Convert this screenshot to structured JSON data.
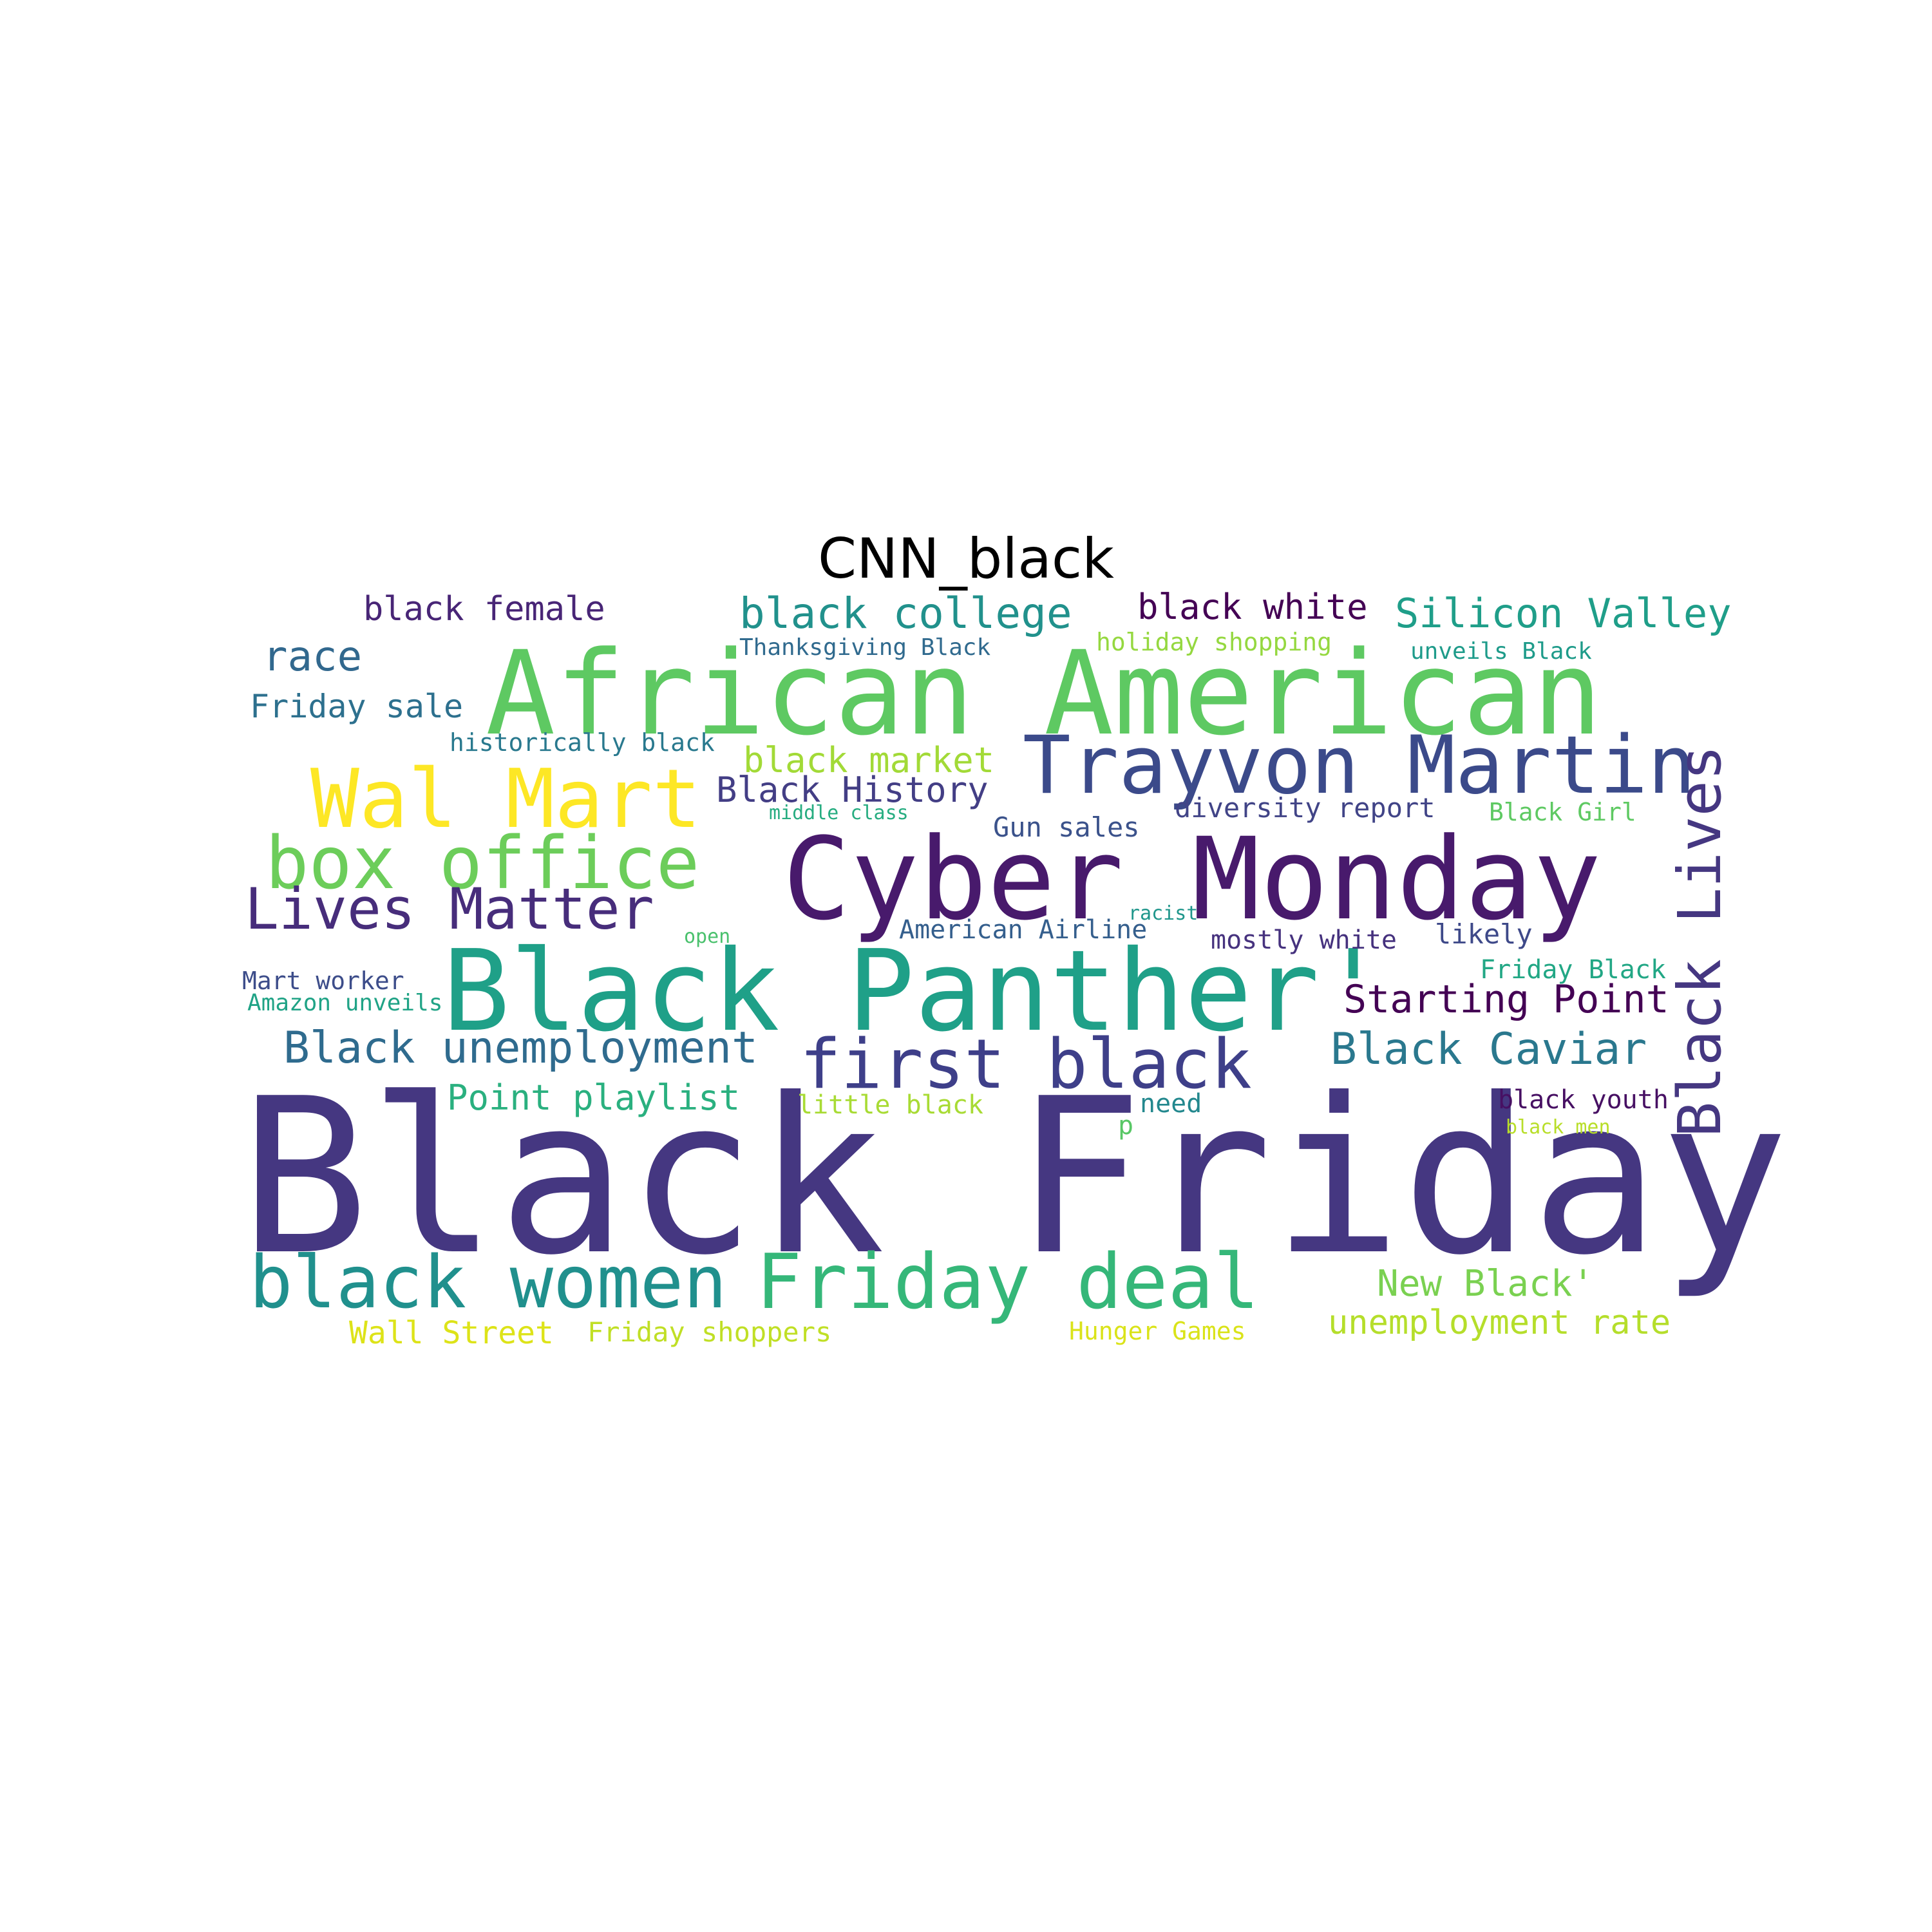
{
  "title": "CNN_black",
  "colors": {
    "dark_purple": "#440154",
    "purple": "#482878",
    "indigo": "#3e4989",
    "blue": "#31688e",
    "teal_blue": "#26828e",
    "teal": "#1f9e89",
    "green_teal": "#35b779",
    "green": "#6ece58",
    "lime": "#b5de2b",
    "yellow": "#fde725"
  },
  "words": [
    {
      "text": "Black Friday",
      "color": "#453781"
    },
    {
      "text": "African American",
      "color": "#5ec962"
    },
    {
      "text": "Cyber Monday",
      "color": "#481a6c"
    },
    {
      "text": "Black Panther'",
      "color": "#1fa088"
    },
    {
      "text": "Trayvon Martin",
      "color": "#3b4a8a"
    },
    {
      "text": "Wal Mart",
      "color": "#fde725"
    },
    {
      "text": "box office",
      "color": "#6ccd5a"
    },
    {
      "text": "Black Lives",
      "color": "#453781"
    },
    {
      "text": "first black",
      "color": "#3e3f89"
    },
    {
      "text": "black women",
      "color": "#20908d"
    },
    {
      "text": "Friday deal",
      "color": "#35b779"
    },
    {
      "text": "Lives Matter",
      "color": "#472d7b"
    },
    {
      "text": "Black unemployment",
      "color": "#2f6b8e"
    },
    {
      "text": "Black Caviar",
      "color": "#2a788e"
    },
    {
      "text": "Starting Point",
      "color": "#440154"
    },
    {
      "text": "black college",
      "color": "#21918c"
    },
    {
      "text": "Silicon Valley",
      "color": "#1f9e89"
    },
    {
      "text": "black female",
      "color": "#482576"
    },
    {
      "text": "black white",
      "color": "#440154"
    },
    {
      "text": "race",
      "color": "#31688e"
    },
    {
      "text": "Friday sale",
      "color": "#2d708e"
    },
    {
      "text": "black market",
      "color": "#a2da37"
    },
    {
      "text": "Black History",
      "color": "#433e85"
    },
    {
      "text": "Point playlist",
      "color": "#2ab07f"
    },
    {
      "text": "New Black'",
      "color": "#7ad151"
    },
    {
      "text": "unemployment rate",
      "color": "#b5de2b"
    },
    {
      "text": "Wall Street",
      "color": "#dde318"
    },
    {
      "text": "Friday shoppers",
      "color": "#c0df25"
    },
    {
      "text": "Hunger Games",
      "color": "#dae319"
    },
    {
      "text": "diversity report",
      "color": "#414487"
    },
    {
      "text": "Black Girl",
      "color": "#5ec962"
    },
    {
      "text": "Gun sales",
      "color": "#3b528b"
    },
    {
      "text": "American Airline",
      "color": "#355f8d"
    },
    {
      "text": "mostly white",
      "color": "#46327e"
    },
    {
      "text": "likely",
      "color": "#3e4989"
    },
    {
      "text": "Friday Black",
      "color": "#22a785"
    },
    {
      "text": "Mart worker",
      "color": "#3d4d8a"
    },
    {
      "text": "Amazon unveils",
      "color": "#20a386"
    },
    {
      "text": "historically black",
      "color": "#29798e"
    },
    {
      "text": "holiday shopping",
      "color": "#95d840"
    },
    {
      "text": "Thanksgiving Black",
      "color": "#306a8e"
    },
    {
      "text": "unveils Black",
      "color": "#1e9b8a"
    },
    {
      "text": "middle class",
      "color": "#27ad81"
    },
    {
      "text": "racist",
      "color": "#1f968b"
    },
    {
      "text": "open",
      "color": "#4ac16d"
    },
    {
      "text": "little black",
      "color": "#a8db34"
    },
    {
      "text": "need",
      "color": "#23888e"
    },
    {
      "text": "p",
      "color": "#58c765"
    },
    {
      "text": "black youth",
      "color": "#471063"
    },
    {
      "text": "black men",
      "color": "#b8de29"
    }
  ]
}
